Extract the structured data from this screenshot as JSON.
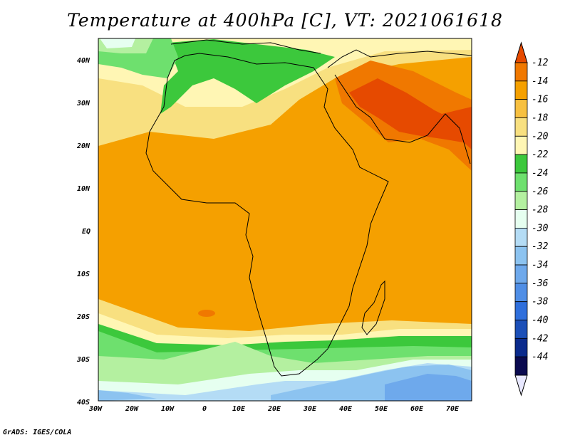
{
  "title": "Temperature at 400hPa [C], VT: 2021061618",
  "footer": "GrADS: IGES/COLA",
  "axes": {
    "lon_ticks": [
      "30W",
      "20W",
      "10W",
      "0",
      "10E",
      "20E",
      "30E",
      "40E",
      "50E",
      "60E",
      "70E"
    ],
    "lat_ticks": [
      "40N",
      "30N",
      "20N",
      "10N",
      "EQ",
      "10S",
      "20S",
      "30S",
      "40S"
    ]
  },
  "colorbar": {
    "labels": [
      "-12",
      "-14",
      "-16",
      "-18",
      "-20",
      "-22",
      "-24",
      "-26",
      "-28",
      "-30",
      "-32",
      "-34",
      "-36",
      "-38",
      "-40",
      "-42",
      "-44"
    ],
    "colors": [
      "#e64a00",
      "#f07800",
      "#f5a000",
      "#f7c040",
      "#f8e080",
      "#fff6b4",
      "#3cc83c",
      "#6ee06e",
      "#b4f0a0",
      "#e6fff0",
      "#b4dcf5",
      "#8cc3f0",
      "#6ea9ec",
      "#4f8ee6",
      "#2f6fdc",
      "#1b4fb8",
      "#0a2a8c",
      "#0a0a50",
      "#e8e8ff"
    ]
  },
  "chart_data": {
    "type": "heatmap",
    "variable": "Temperature at 400hPa",
    "units": "C",
    "valid_time": "2021061618",
    "lon_range": [
      "30W",
      "75E"
    ],
    "lat_range": [
      "40S",
      "45N"
    ],
    "levels": [
      -44,
      -42,
      -40,
      -38,
      -36,
      -34,
      -32,
      -30,
      -28,
      -26,
      -24,
      -22,
      -20,
      -18,
      -16,
      -14,
      -12
    ]
  }
}
